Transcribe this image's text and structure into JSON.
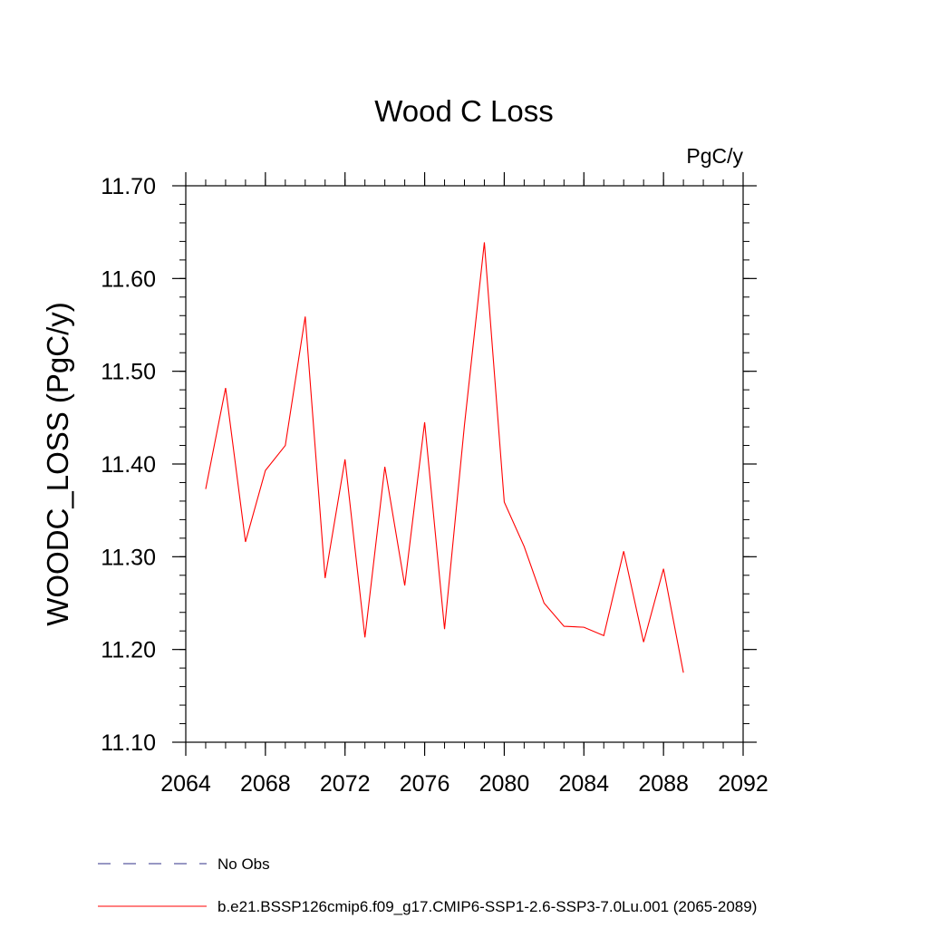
{
  "chart_data": {
    "type": "line",
    "title": "Wood C Loss",
    "units_label": "PgC/y",
    "xlabel": "",
    "ylabel": "WOODC_LOSS  (PgC/y)",
    "xlim": [
      2064,
      2092
    ],
    "ylim": [
      11.1,
      11.7
    ],
    "x_ticks": [
      2064,
      2068,
      2072,
      2076,
      2080,
      2084,
      2088,
      2092
    ],
    "y_ticks": [
      11.1,
      11.2,
      11.3,
      11.4,
      11.5,
      11.6,
      11.7
    ],
    "y_tick_labels": [
      "11.10",
      "11.20",
      "11.30",
      "11.40",
      "11.50",
      "11.60",
      "11.70"
    ],
    "x_minor_step": 1,
    "y_minor_step": 0.02,
    "grid": false,
    "series": [
      {
        "name": "b.e21.BSSP126cmip6.f09_g17.CMIP6-SSP1-2.6-SSP3-7.0Lu.001 (2065-2089)",
        "color": "#ff0000",
        "x": [
          2065,
          2066,
          2067,
          2068,
          2069,
          2070,
          2071,
          2072,
          2073,
          2074,
          2075,
          2076,
          2077,
          2078,
          2079,
          2080,
          2081,
          2082,
          2083,
          2084,
          2085,
          2086,
          2087,
          2088,
          2089
        ],
        "values": [
          11.373,
          11.482,
          11.316,
          11.393,
          11.42,
          11.559,
          11.277,
          11.405,
          11.213,
          11.397,
          11.269,
          11.445,
          11.222,
          11.442,
          11.639,
          11.359,
          11.311,
          11.25,
          11.225,
          11.224,
          11.215,
          11.306,
          11.208,
          11.287,
          11.175
        ]
      }
    ],
    "legend": [
      {
        "label": "No Obs",
        "color": "#5a5aa0",
        "style": "dashed"
      },
      {
        "label": "b.e21.BSSP126cmip6.f09_g17.CMIP6-SSP1-2.6-SSP3-7.0Lu.001 (2065-2089)",
        "color": "#ff0000",
        "style": "solid"
      }
    ]
  }
}
